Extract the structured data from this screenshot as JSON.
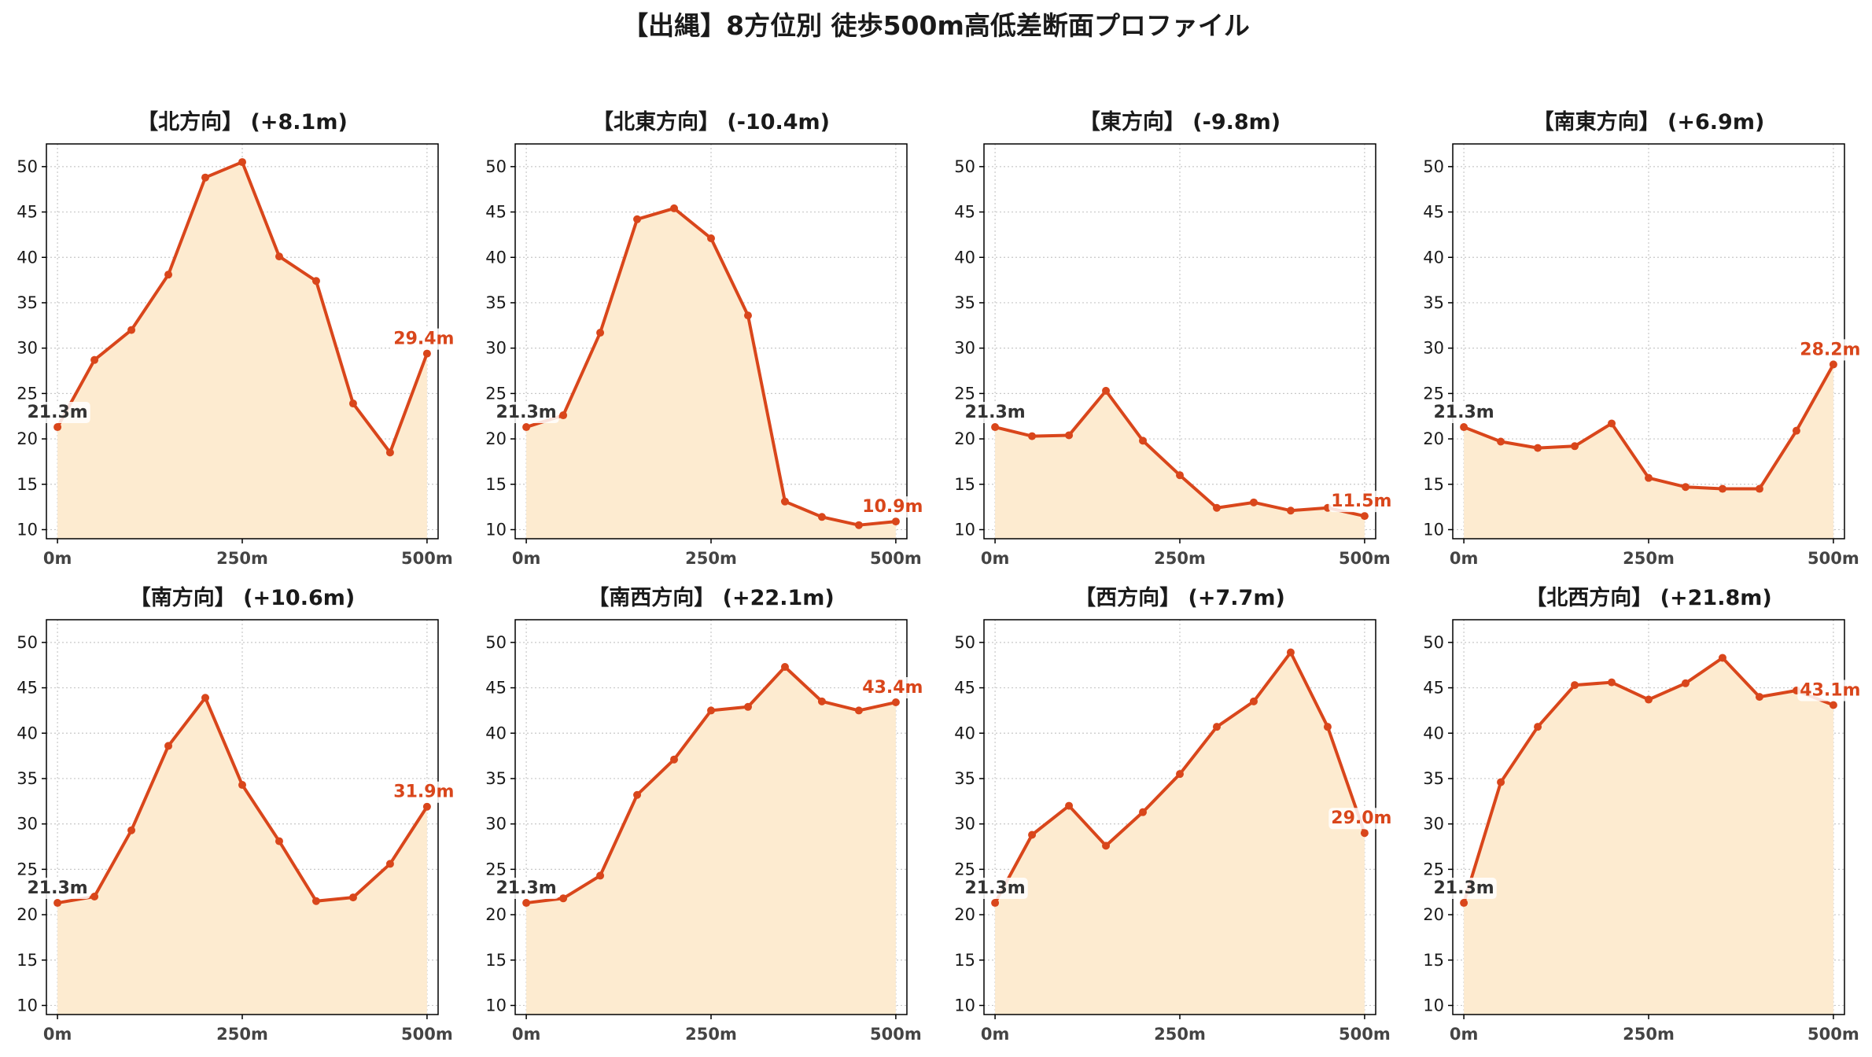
{
  "page": {
    "title": "【出縄】8方位別 徒歩500m高低差断面プロファイル"
  },
  "colors": {
    "line": "#d9461b",
    "fill": "#fdebd0",
    "start_label": "#333333",
    "end_label": "#d9461b",
    "grid": "#c8c8c8",
    "axis": "#000000"
  },
  "chart_data": [
    {
      "type": "area",
      "title": "【北方向】 (+8.1m)",
      "x": [
        0,
        50,
        100,
        150,
        200,
        250,
        300,
        350,
        400,
        450,
        500
      ],
      "values": [
        21.3,
        28.7,
        32.0,
        38.1,
        48.8,
        50.5,
        40.1,
        37.4,
        23.9,
        18.5,
        29.4
      ],
      "start_label": "21.3m",
      "end_label": "29.4m",
      "xticks": [
        "0m",
        "250m",
        "500m"
      ],
      "yticks": [
        10,
        15,
        20,
        25,
        30,
        35,
        40,
        45,
        50
      ],
      "xlim": [
        0,
        500
      ],
      "ylim": [
        9,
        52.5
      ],
      "grid": true
    },
    {
      "type": "area",
      "title": "【北東方向】 (-10.4m)",
      "x": [
        0,
        50,
        100,
        150,
        200,
        250,
        300,
        350,
        400,
        450,
        500
      ],
      "values": [
        21.3,
        22.6,
        31.7,
        44.2,
        45.4,
        42.1,
        33.6,
        13.1,
        11.4,
        10.5,
        10.9
      ],
      "start_label": "21.3m",
      "end_label": "10.9m",
      "xticks": [
        "0m",
        "250m",
        "500m"
      ],
      "yticks": [
        10,
        15,
        20,
        25,
        30,
        35,
        40,
        45,
        50
      ],
      "xlim": [
        0,
        500
      ],
      "ylim": [
        9,
        52.5
      ],
      "grid": true
    },
    {
      "type": "area",
      "title": "【東方向】 (-9.8m)",
      "x": [
        0,
        50,
        100,
        150,
        200,
        250,
        300,
        350,
        400,
        450,
        500
      ],
      "values": [
        21.3,
        20.3,
        20.4,
        25.3,
        19.8,
        16.0,
        12.4,
        13.0,
        12.1,
        12.4,
        11.5
      ],
      "start_label": "21.3m",
      "end_label": "11.5m",
      "xticks": [
        "0m",
        "250m",
        "500m"
      ],
      "yticks": [
        10,
        15,
        20,
        25,
        30,
        35,
        40,
        45,
        50
      ],
      "xlim": [
        0,
        500
      ],
      "ylim": [
        9,
        52.5
      ],
      "grid": true
    },
    {
      "type": "area",
      "title": "【南東方向】 (+6.9m)",
      "x": [
        0,
        50,
        100,
        150,
        200,
        250,
        300,
        350,
        400,
        450,
        500
      ],
      "values": [
        21.3,
        19.7,
        19.0,
        19.2,
        21.7,
        15.7,
        14.7,
        14.5,
        14.5,
        20.9,
        28.2
      ],
      "start_label": "21.3m",
      "end_label": "28.2m",
      "xticks": [
        "0m",
        "250m",
        "500m"
      ],
      "yticks": [
        10,
        15,
        20,
        25,
        30,
        35,
        40,
        45,
        50
      ],
      "xlim": [
        0,
        500
      ],
      "ylim": [
        9,
        52.5
      ],
      "grid": true
    },
    {
      "type": "area",
      "title": "【南方向】 (+10.6m)",
      "x": [
        0,
        50,
        100,
        150,
        200,
        250,
        300,
        350,
        400,
        450,
        500
      ],
      "values": [
        21.3,
        22.0,
        29.3,
        38.6,
        43.9,
        34.3,
        28.1,
        21.5,
        21.9,
        25.6,
        31.9
      ],
      "start_label": "21.3m",
      "end_label": "31.9m",
      "xticks": [
        "0m",
        "250m",
        "500m"
      ],
      "yticks": [
        10,
        15,
        20,
        25,
        30,
        35,
        40,
        45,
        50
      ],
      "xlim": [
        0,
        500
      ],
      "ylim": [
        9,
        52.5
      ],
      "grid": true
    },
    {
      "type": "area",
      "title": "【南西方向】 (+22.1m)",
      "x": [
        0,
        50,
        100,
        150,
        200,
        250,
        300,
        350,
        400,
        450,
        500
      ],
      "values": [
        21.3,
        21.8,
        24.3,
        33.2,
        37.1,
        42.5,
        42.9,
        47.3,
        43.5,
        42.5,
        43.4
      ],
      "start_label": "21.3m",
      "end_label": "43.4m",
      "xticks": [
        "0m",
        "250m",
        "500m"
      ],
      "yticks": [
        10,
        15,
        20,
        25,
        30,
        35,
        40,
        45,
        50
      ],
      "xlim": [
        0,
        500
      ],
      "ylim": [
        9,
        52.5
      ],
      "grid": true
    },
    {
      "type": "area",
      "title": "【西方向】 (+7.7m)",
      "x": [
        0,
        50,
        100,
        150,
        200,
        250,
        300,
        350,
        400,
        450,
        500
      ],
      "values": [
        21.3,
        28.8,
        32.0,
        27.6,
        31.3,
        35.5,
        40.7,
        43.5,
        48.9,
        40.7,
        29.0
      ],
      "start_label": "21.3m",
      "end_label": "29.0m",
      "xticks": [
        "0m",
        "250m",
        "500m"
      ],
      "yticks": [
        10,
        15,
        20,
        25,
        30,
        35,
        40,
        45,
        50
      ],
      "xlim": [
        0,
        500
      ],
      "ylim": [
        9,
        52.5
      ],
      "grid": true
    },
    {
      "type": "area",
      "title": "【北西方向】 (+21.8m)",
      "x": [
        0,
        50,
        100,
        150,
        200,
        250,
        300,
        350,
        400,
        450,
        500
      ],
      "values": [
        21.3,
        34.6,
        40.7,
        45.3,
        45.6,
        43.7,
        45.5,
        48.3,
        44.0,
        44.7,
        43.1
      ],
      "start_label": "21.3m",
      "end_label": "43.1m",
      "xticks": [
        "0m",
        "250m",
        "500m"
      ],
      "yticks": [
        10,
        15,
        20,
        25,
        30,
        35,
        40,
        45,
        50
      ],
      "xlim": [
        0,
        500
      ],
      "ylim": [
        9,
        52.5
      ],
      "grid": true
    }
  ]
}
